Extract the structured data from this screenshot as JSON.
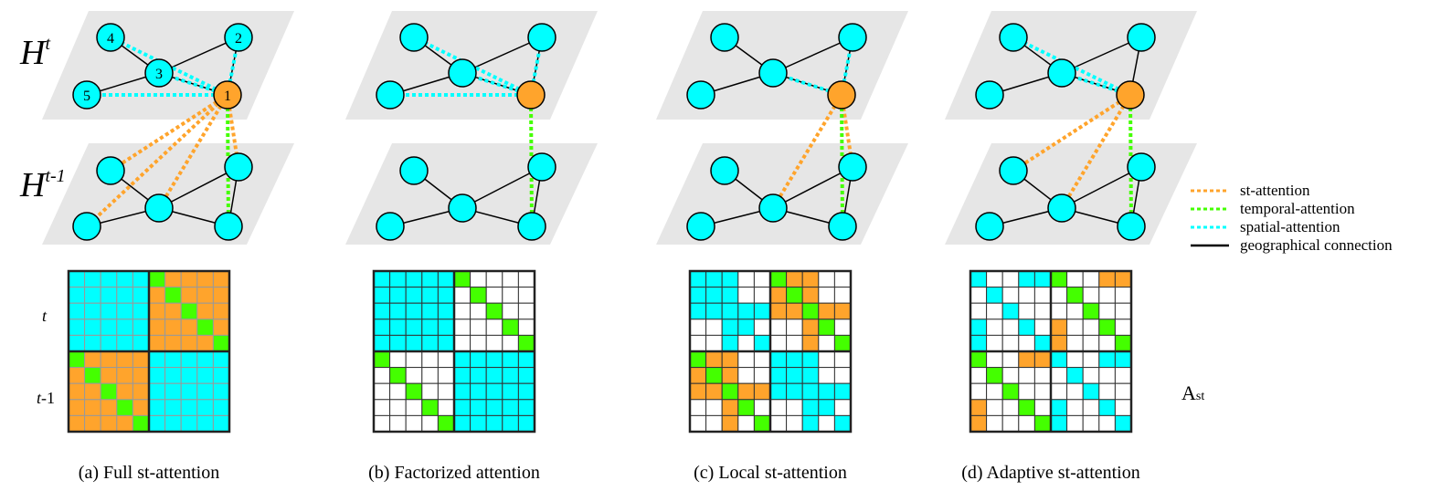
{
  "colors": {
    "cyan": "#00ffff",
    "orange": "#ffa42c",
    "green": "#44ff00",
    "plane": "#e6e6e6",
    "white": "#ffffff"
  },
  "layer_labels": {
    "top_base": "H",
    "top_sup": "t",
    "bottom_base": "H",
    "bottom_sup": "t-1"
  },
  "node_numbers": [
    "1",
    "2",
    "3",
    "4",
    "5"
  ],
  "row_labels": {
    "t": "t",
    "t1_base": "t",
    "t1_suffix": "-1"
  },
  "matrix_label": {
    "base": "A",
    "sub": "st"
  },
  "legend": [
    {
      "label": "st-attention",
      "style": "dotted",
      "color": "#ffa42c"
    },
    {
      "label": "temporal-attention",
      "style": "dotted",
      "color": "#44ff00"
    },
    {
      "label": "spatial-attention",
      "style": "dotted",
      "color": "#00ffff"
    },
    {
      "label": "geographical connection",
      "style": "solid",
      "color": "#000000"
    }
  ],
  "panels": [
    {
      "caption": "(a) Full st-attention",
      "spatial": [
        "2",
        "3",
        "4",
        "5"
      ],
      "st": [
        "a",
        "c",
        "d",
        "b"
      ],
      "temporal": [
        "e"
      ],
      "matrix": [
        "CCCCCGOOOO",
        "CCCCCOGOOO",
        "CCCCCOOGOO",
        "CCCCCOOOGO",
        "CCCCCOOOOG",
        "GOOOOCCCCC",
        "OGOOOCCCCC",
        "OOGOOCCCCC",
        "OOOGOCCCCC",
        "OOOOGCCCCC"
      ]
    },
    {
      "caption": "(b) Factorized attention",
      "spatial": [
        "2",
        "3",
        "4",
        "5"
      ],
      "st": [],
      "temporal": [
        "e"
      ],
      "matrix": [
        "CCCCCGWWWW",
        "CCCCCWGWWW",
        "CCCCCWWGWW",
        "CCCCCWWWGW",
        "CCCCCWWWWG",
        "GWWWWCCCCC",
        "WGWWWCCCCC",
        "WWGWWCCCCC",
        "WWWGWCCCCC",
        "WWWWGCCCCC"
      ]
    },
    {
      "caption": "(c) Local st-attention",
      "spatial": [
        "2",
        "3"
      ],
      "st": [
        "c",
        "b"
      ],
      "temporal": [
        "e"
      ],
      "matrix": [
        "CCCWWGOOWW",
        "CCCWWOGOWW",
        "CCCCCOOGOO",
        "WWCCWWWOGW",
        "WWCWCWWOWG",
        "GOOWWCCCWW",
        "OGOWWCCCWW",
        "OOGOOCCCCC",
        "WWOGWWWCCW",
        "WWOWGWWCWC"
      ]
    },
    {
      "caption": "(d) Adaptive st-attention",
      "spatial": [
        "4",
        "3"
      ],
      "st": [
        "a",
        "c"
      ],
      "temporal": [
        "e"
      ],
      "matrix": [
        "CWWCCGWWOO",
        "WCWWWWGWWW",
        "WWCWWWWGWW",
        "CWWCWOWWGW",
        "CWWWCOWWWG",
        "GWWOOCWWCC",
        "WGWWWWCWWW",
        "WWGWWWWCWW",
        "OWWGWCWWCW",
        "OWWWGCWWWC"
      ]
    }
  ]
}
